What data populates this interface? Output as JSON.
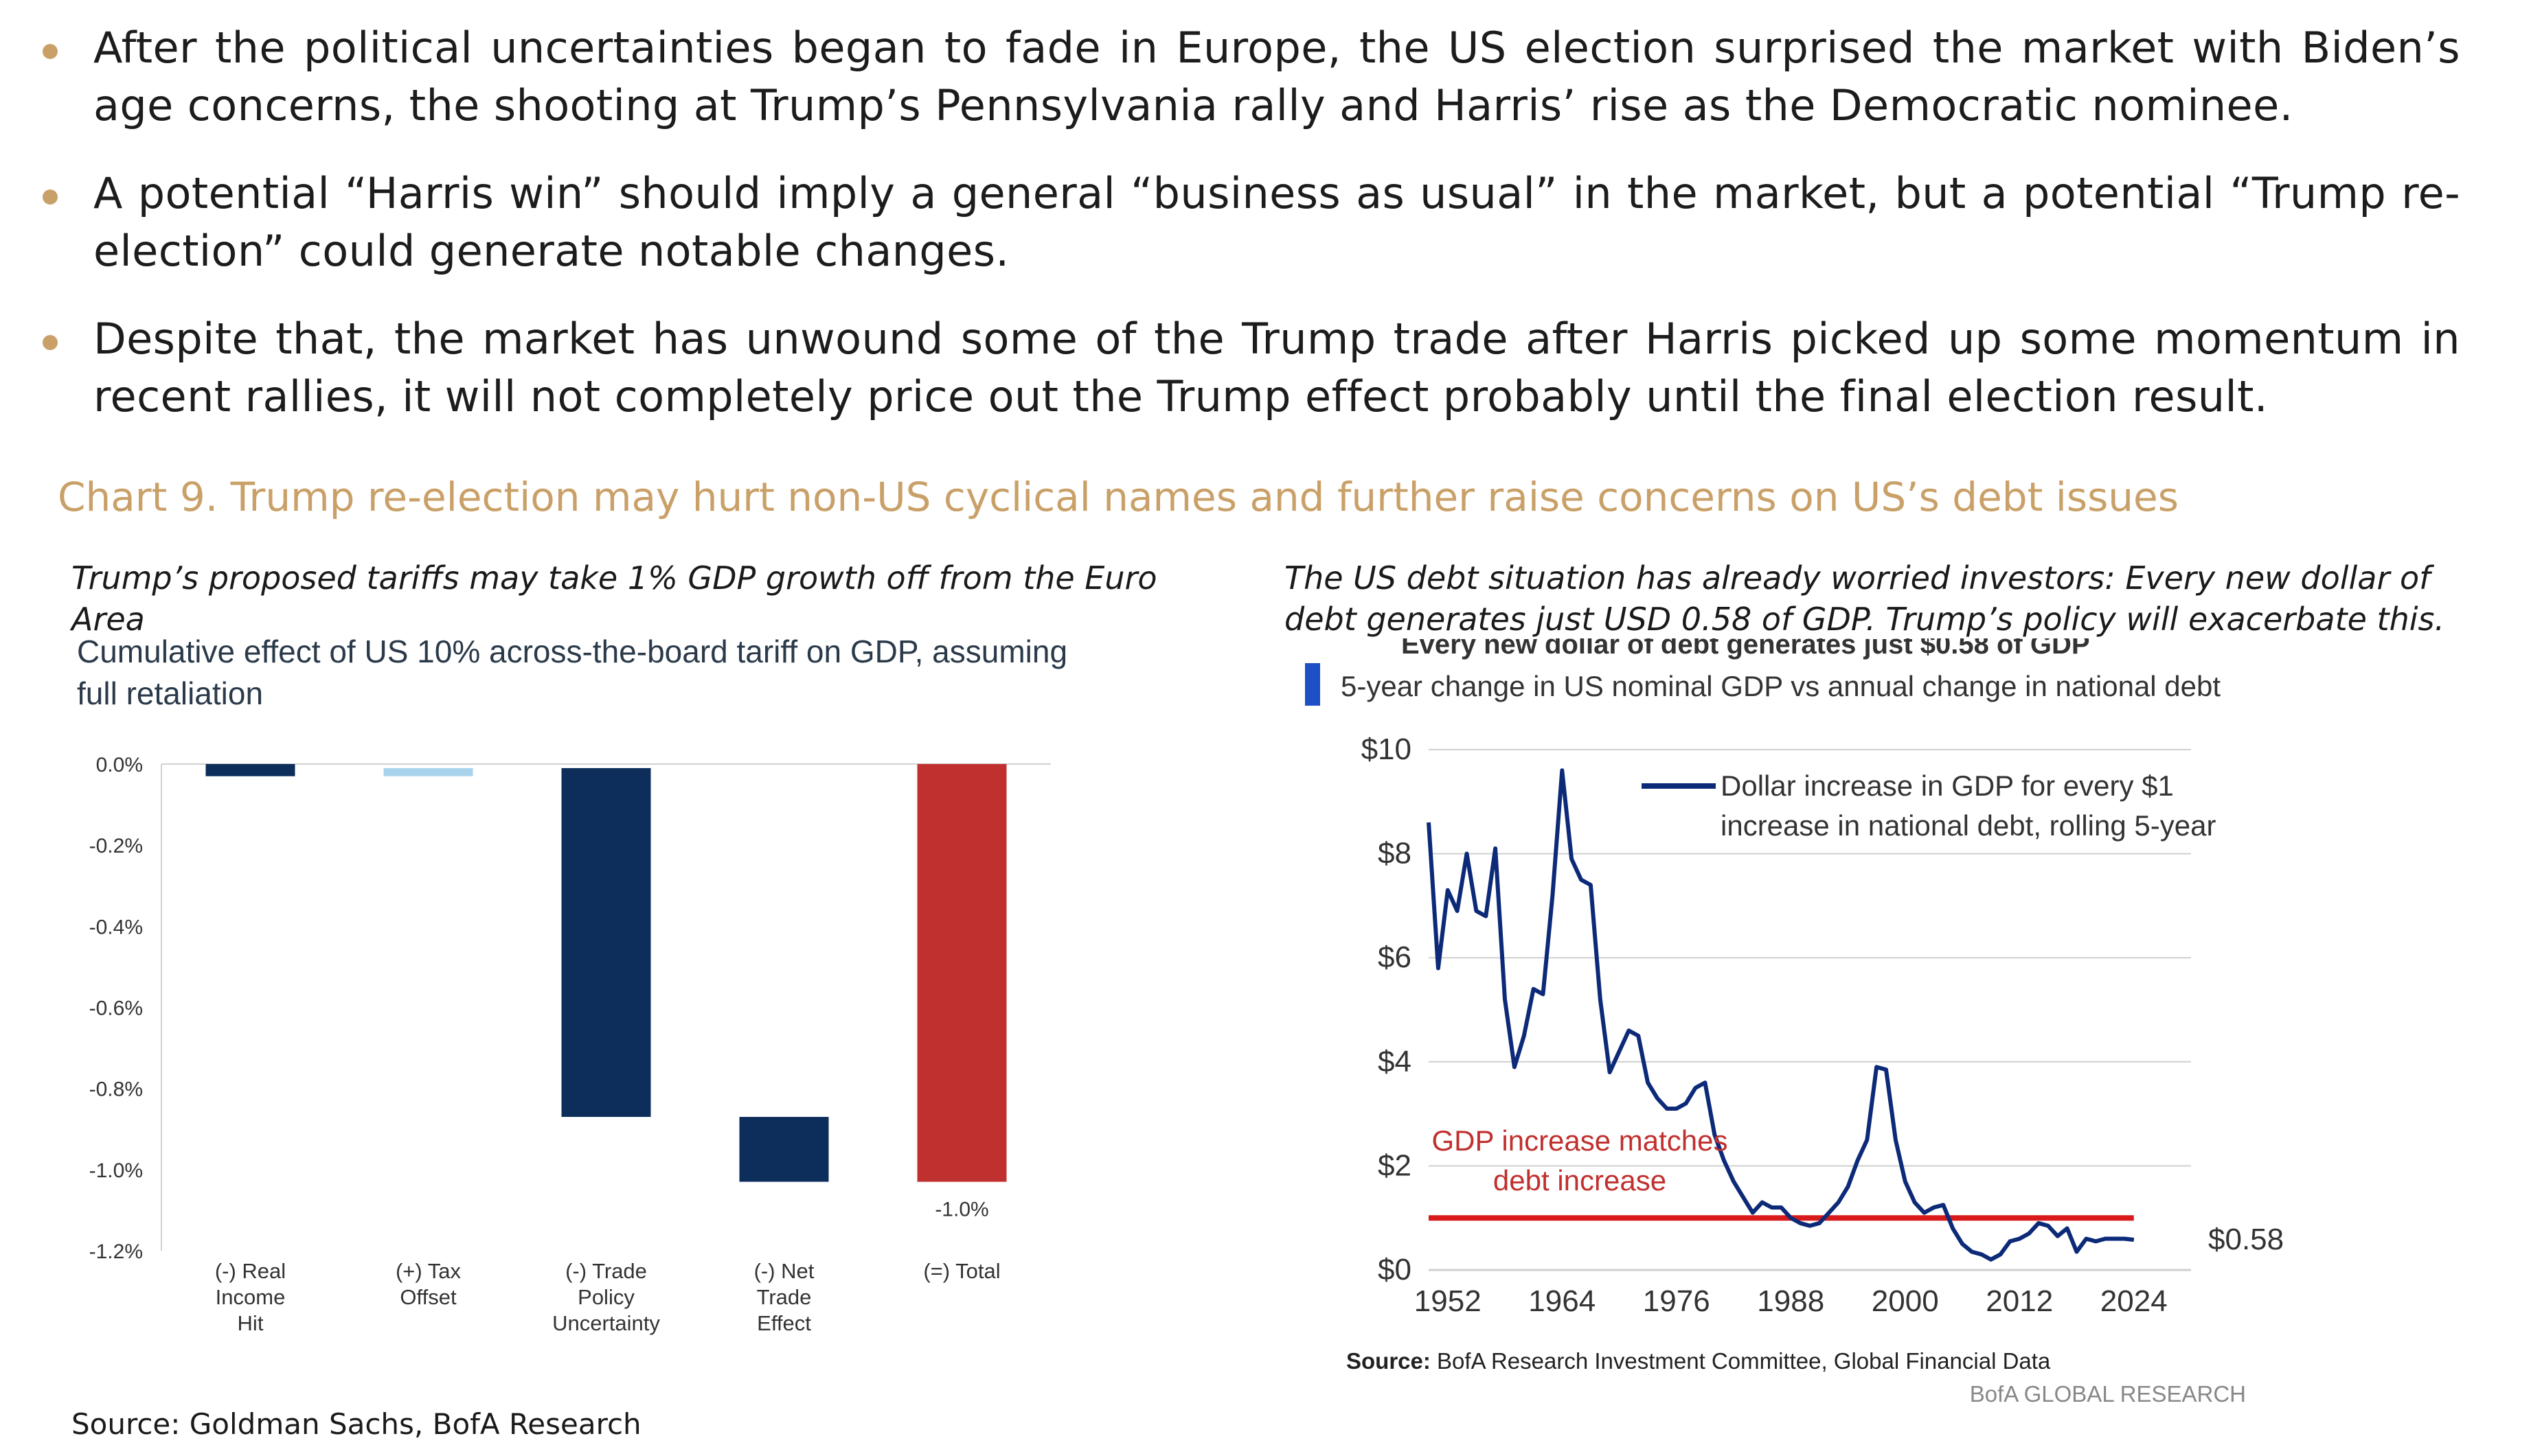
{
  "bullets": [
    "After the political uncertainties began to fade in Europe, the US election surprised the market with Biden’s age concerns, the shooting at Trump’s Pennsylvania rally and Harris’ rise as the Democratic nominee.",
    "A potential “Harris win” should imply a general “business as usual” in the market, but a potential “Trump re-election” could generate notable changes.",
    "Despite that, the market has unwound some of the Trump trade after Harris picked up some momentum in recent rallies, it will not completely price out the Trump effect probably until the final election result."
  ],
  "chart_title": "Chart 9. Trump re-election may hurt non-US cyclical names and further raise concerns on US’s debt issues",
  "left_subtitle": "Trump’s proposed tariffs may take 1% GDP growth off from the Euro Area",
  "right_subtitle": "The US debt situation has already worried investors: Every new dollar of debt generates just USD 0.58 of GDP. Trump’s policy will exacerbate this.",
  "source_left": "Source: Goldman Sachs, BofA Research",
  "colors": {
    "gold": "#c9a068",
    "navy": "#0d2d5b",
    "light_blue": "#a9d3ec",
    "red": "#c0302e",
    "line_red": "#d91a1a"
  },
  "chart_data": [
    {
      "type": "bar",
      "title": "Cumulative effect of US 10% across-the-board tariff on GDP, assuming full retaliation",
      "categories": [
        [
          "(-) Real",
          "Income",
          "Hit"
        ],
        [
          "(+) Tax",
          "Offset"
        ],
        [
          "(-) Trade",
          "Policy",
          "Uncertainty"
        ],
        [
          "(-) Net",
          "Trade",
          "Effect"
        ],
        [
          "(=) Total"
        ]
      ],
      "waterfall": [
        {
          "start": 0.0,
          "end": -0.03,
          "color": "navy"
        },
        {
          "start": -0.01,
          "end": -0.03,
          "color": "light_blue"
        },
        {
          "start": -0.01,
          "end": -0.87,
          "color": "navy"
        },
        {
          "start": -0.87,
          "end": -1.03,
          "color": "navy"
        },
        {
          "start": 0.0,
          "end": -1.03,
          "color": "red"
        }
      ],
      "data_label": "-1.0%",
      "ylim": [
        -1.2,
        0.0
      ],
      "yticks": [
        "0.0%",
        "-0.2%",
        "-0.4%",
        "-0.6%",
        "-0.8%",
        "-1.0%",
        "-1.2%"
      ]
    },
    {
      "type": "line",
      "header_cutoff": "Every new dollar of debt generates just $0.58 of GDP",
      "title": "5-year change in US nominal GDP vs annual change in national debt",
      "legend": [
        "Dollar increase in GDP for every $1",
        "increase in national debt, rolling 5-year"
      ],
      "annotation": [
        "GDP increase matches",
        "debt increase"
      ],
      "end_label": "$0.58",
      "reference_line": 1.0,
      "ylim": [
        0,
        10
      ],
      "yticks": [
        "$0",
        "$2",
        "$4",
        "$6",
        "$8",
        "$10"
      ],
      "xlim": [
        1950,
        2030
      ],
      "xticks": [
        "1952",
        "1964",
        "1976",
        "1988",
        "2000",
        "2012",
        "2024"
      ],
      "x": [
        1950,
        1951,
        1952,
        1953,
        1954,
        1955,
        1956,
        1957,
        1958,
        1959,
        1960,
        1961,
        1962,
        1963,
        1964,
        1965,
        1966,
        1967,
        1968,
        1969,
        1970,
        1971,
        1972,
        1973,
        1974,
        1975,
        1976,
        1977,
        1978,
        1979,
        1980,
        1981,
        1982,
        1983,
        1984,
        1985,
        1986,
        1987,
        1988,
        1989,
        1990,
        1991,
        1992,
        1993,
        1994,
        1995,
        1996,
        1997,
        1998,
        1999,
        2000,
        2001,
        2002,
        2003,
        2004,
        2005,
        2006,
        2007,
        2008,
        2009,
        2010,
        2011,
        2012,
        2013,
        2014,
        2015,
        2016,
        2017,
        2018,
        2019,
        2020,
        2021,
        2022,
        2023,
        2024
      ],
      "y": [
        8.6,
        5.8,
        7.3,
        6.9,
        8.0,
        6.9,
        6.8,
        8.1,
        5.2,
        3.9,
        4.5,
        5.4,
        5.3,
        7.2,
        9.6,
        7.9,
        7.5,
        7.4,
        5.2,
        3.8,
        4.2,
        4.6,
        4.5,
        3.6,
        3.3,
        3.1,
        3.1,
        3.2,
        3.5,
        3.6,
        2.6,
        2.1,
        1.7,
        1.4,
        1.1,
        1.3,
        1.2,
        1.2,
        1.0,
        0.9,
        0.85,
        0.9,
        1.1,
        1.3,
        1.6,
        2.1,
        2.5,
        3.9,
        3.85,
        2.5,
        1.7,
        1.3,
        1.1,
        1.2,
        1.25,
        0.8,
        0.5,
        0.35,
        0.3,
        0.2,
        0.3,
        0.55,
        0.6,
        0.7,
        0.9,
        0.85,
        0.65,
        0.8,
        0.35,
        0.6,
        0.55,
        0.6,
        0.6,
        0.6,
        0.58
      ],
      "source_label": "Source:",
      "source_text": "BofA Research Investment Committee, Global Financial Data",
      "brand": "BofA GLOBAL RESEARCH"
    }
  ]
}
